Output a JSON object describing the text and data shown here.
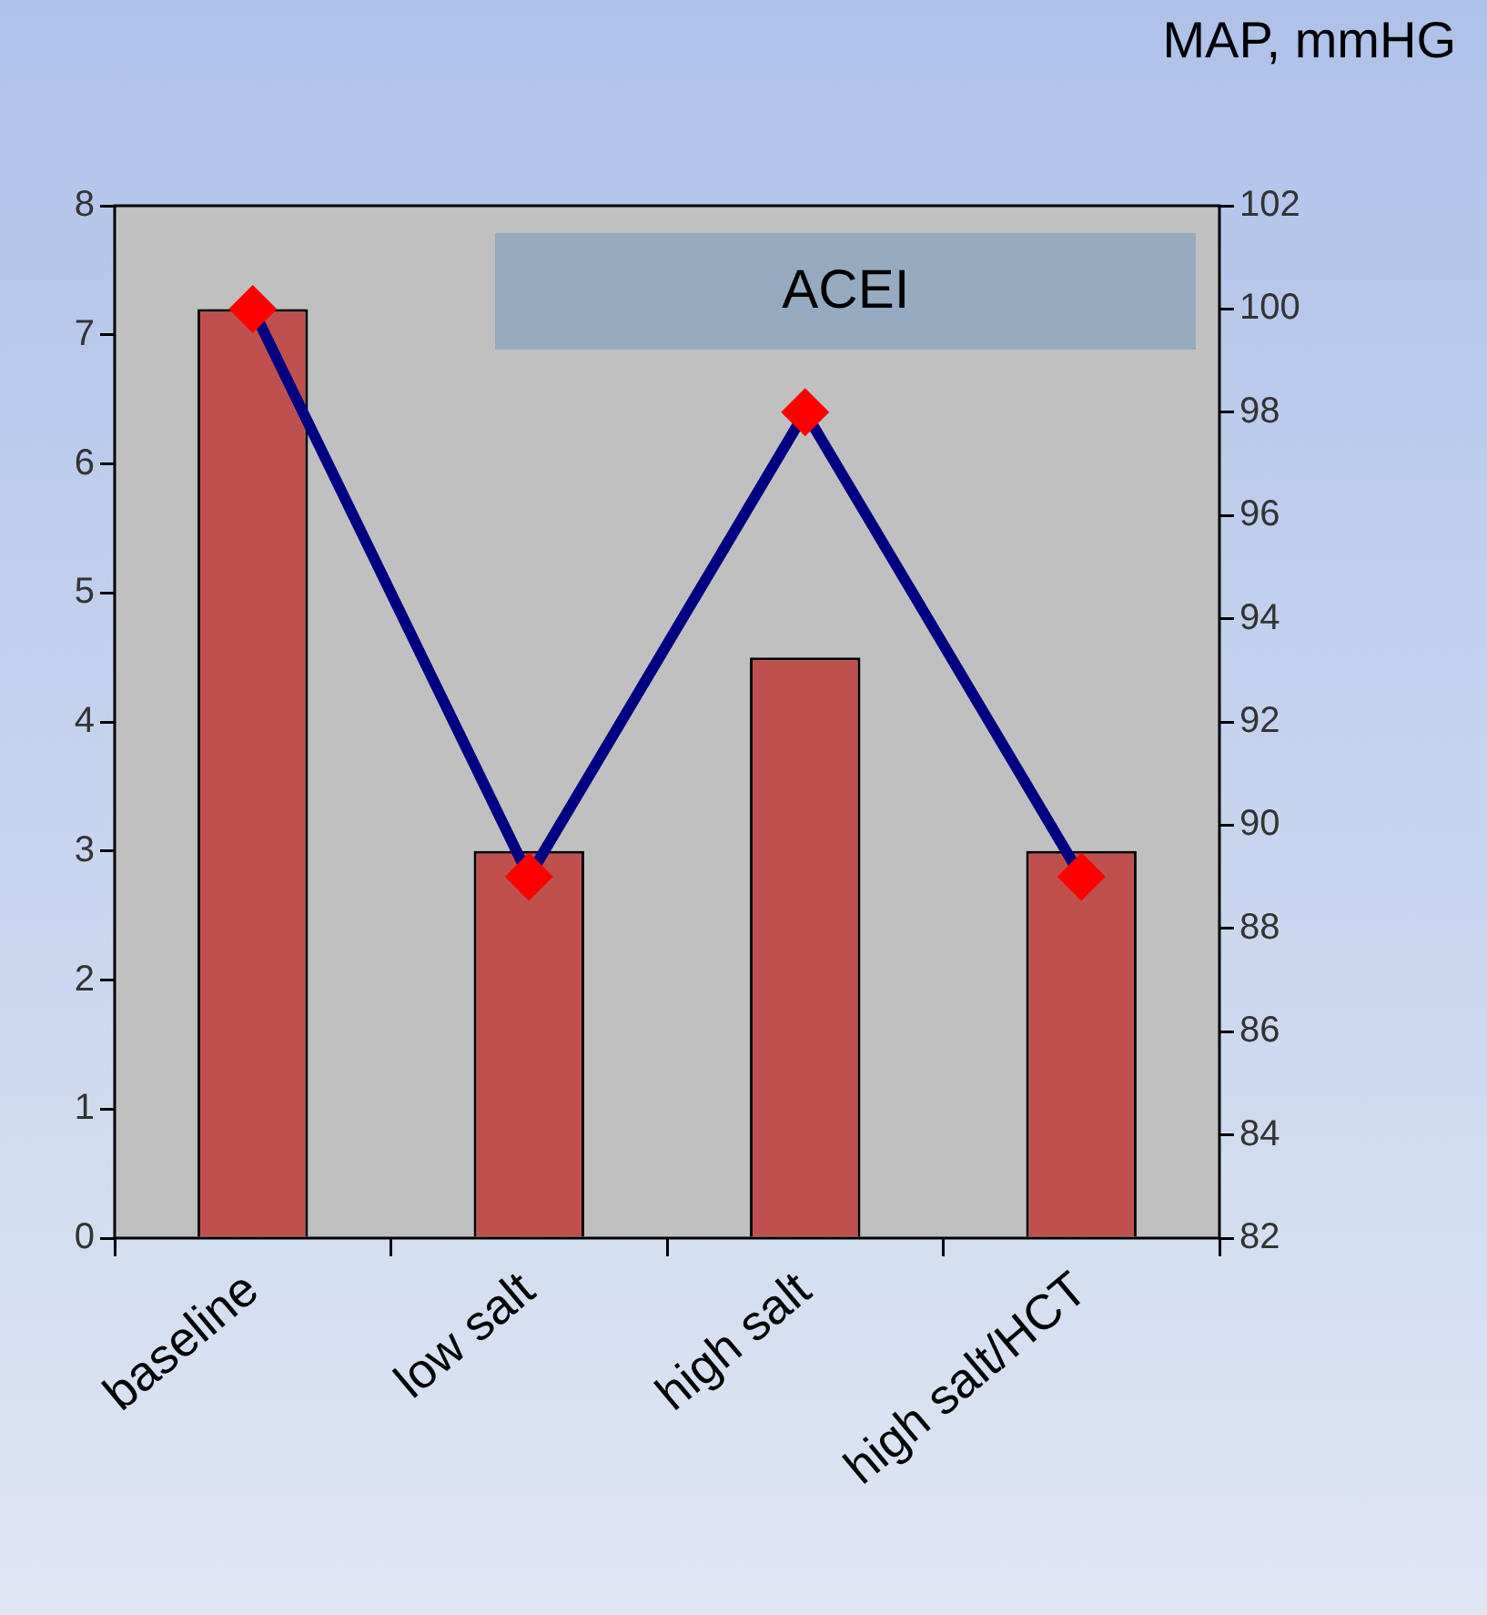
{
  "chart_data": {
    "type": "bar",
    "categories": [
      "baseline",
      "low salt",
      "high salt",
      "high salt/HCT"
    ],
    "series": [
      {
        "color": "#c0504d",
        "values": [
          7.2,
          3,
          4.5,
          3
        ]
      },
      {
        "type": "line",
        "axis": "y2",
        "color": "#000080",
        "values": [
          100,
          89,
          98,
          89
        ]
      }
    ],
    "ylim": [
      0,
      8
    ],
    "yticks": [
      0,
      1,
      2,
      3,
      4,
      5,
      6,
      7,
      8
    ],
    "y2lim": [
      82,
      102
    ],
    "y2ticks": [
      82,
      84,
      86,
      88,
      90,
      92,
      94,
      96,
      98,
      100,
      102
    ],
    "y2label": "MAP, mmHG",
    "annotations": [
      "ACEI"
    ],
    "marker": "diamond",
    "grid": false,
    "legend": false
  }
}
